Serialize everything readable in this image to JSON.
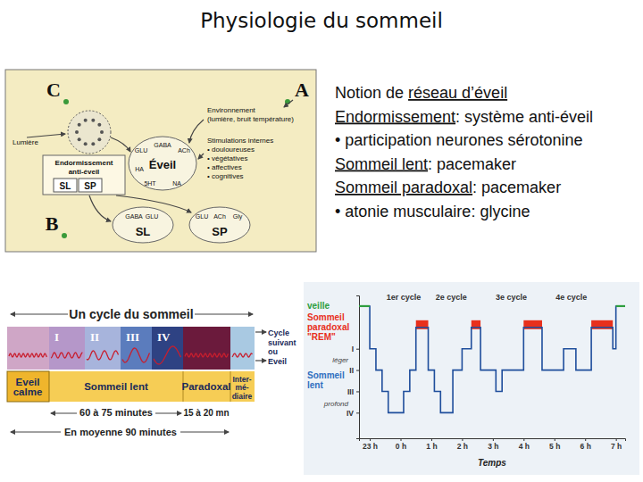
{
  "title": "Physiologie du sommeil",
  "diagram": {
    "markers": [
      "A",
      "B",
      "C"
    ],
    "light": "Lumière",
    "environment": [
      "Environnement",
      "(lumière, bruit température)"
    ],
    "internal": [
      "Stimulations internes",
      "• douloureuses",
      "• végétatives",
      "• affectives",
      "• cognitives"
    ],
    "wake": {
      "label": "Éveil",
      "transmitters": [
        "GABA",
        "ACh",
        "GLU",
        "HA",
        "5HT",
        "NA"
      ]
    },
    "sleep_onset": {
      "lines": [
        "Endormissement",
        "anti-éveil"
      ],
      "states": [
        "SL",
        "SP"
      ]
    },
    "nodes": [
      {
        "label": "SL",
        "transmitters": [
          "GABA",
          "GLU"
        ]
      },
      {
        "label": "SP",
        "transmitters": [
          "GLU",
          "ACh",
          "Gly"
        ]
      }
    ]
  },
  "bullets": [
    [
      {
        "text": "Notion de "
      },
      {
        "text": "réseau d’éveil",
        "underline": true
      }
    ],
    [
      {
        "text": "Endormissement",
        "underline": true
      },
      {
        "text": ": système anti-éveil"
      }
    ],
    [
      {
        "text": "• participation neurones sérotonine"
      }
    ],
    [
      {
        "text": "Sommeil lent",
        "underline": true
      },
      {
        "text": ": pacemaker"
      }
    ],
    [
      {
        "text": "Sommeil paradoxal",
        "underline": true
      },
      {
        "text": ": pacemaker"
      }
    ],
    [
      {
        "text": "• atonie musculaire: glycine"
      }
    ]
  ],
  "cycle": {
    "title": "Un cycle du sommeil",
    "stages": [
      "I",
      "II",
      "III",
      "IV"
    ],
    "bands": [
      [
        "Eveil",
        "calme"
      ],
      [
        "Sommeil lent"
      ],
      [
        "Paradoxal"
      ],
      [
        "Inter-",
        "mé-",
        "diaire"
      ]
    ],
    "next": [
      "Cycle",
      "suivant",
      "ou",
      "Eveil"
    ],
    "durations": [
      "60 à 75 minutes",
      "15 à 20 mn",
      "En moyenne 90 minutes"
    ]
  },
  "chart_data": {
    "type": "line",
    "line_style": "step",
    "color": "#1f4e9c",
    "x": [
      22.65,
      23.0,
      23.2,
      23.4,
      23.6,
      24.1,
      24.3,
      24.5,
      24.9,
      25.1,
      25.3,
      25.7,
      26.0,
      26.3,
      26.6,
      27.1,
      27.3,
      28.0,
      28.6,
      29.3,
      29.7,
      30.2,
      30.9,
      31.0,
      31.3
    ],
    "values": [
      5,
      3,
      2,
      1,
      0,
      1,
      2,
      4,
      2,
      1,
      0,
      2,
      3,
      4,
      2,
      1,
      2,
      4,
      2,
      3,
      2,
      4,
      3,
      5,
      5
    ],
    "xlim": [
      22.65,
      31.3
    ],
    "xticks": [
      {
        "value": 23,
        "label": "23 h"
      },
      {
        "value": 24,
        "label": "0 h"
      },
      {
        "value": 25,
        "label": "1 h"
      },
      {
        "value": 26,
        "label": "2 h"
      },
      {
        "value": 27,
        "label": "3 h"
      },
      {
        "value": 28,
        "label": "4 h"
      },
      {
        "value": 29,
        "label": "5 h"
      },
      {
        "value": 30,
        "label": "6 h"
      },
      {
        "value": 31,
        "label": "7 h"
      }
    ],
    "ylim": [
      -1.2,
      5.5
    ],
    "yticks": [
      {
        "value": 0,
        "label": "IV"
      },
      {
        "value": 1,
        "label": "III"
      },
      {
        "value": 2,
        "label": "II"
      },
      {
        "value": 3,
        "label": "I"
      }
    ],
    "xlabel": "Temps",
    "annotations": [
      {
        "text": "1er cycle",
        "x": 24.1,
        "y": 5.3
      },
      {
        "text": "2e cycle",
        "x": 25.65,
        "y": 5.3
      },
      {
        "text": "3e cycle",
        "x": 27.6,
        "y": 5.3
      },
      {
        "text": "4e cycle",
        "x": 29.55,
        "y": 5.3
      }
    ],
    "level_labels": [
      {
        "lines": [
          "veille"
        ],
        "y": 5,
        "color": "#2e9e3e"
      },
      {
        "lines": [
          "Sommeil",
          "paradoxal",
          "\"REM\""
        ],
        "y": 4,
        "color": "#e8301c"
      },
      {
        "lines": [
          "Sommeil",
          "lent"
        ],
        "y": 1.5,
        "color": "#2f6fc0"
      },
      {
        "lines": [
          "léger"
        ],
        "y": 2.5
      },
      {
        "lines": [
          "profond"
        ],
        "y": 0.45
      }
    ]
  }
}
